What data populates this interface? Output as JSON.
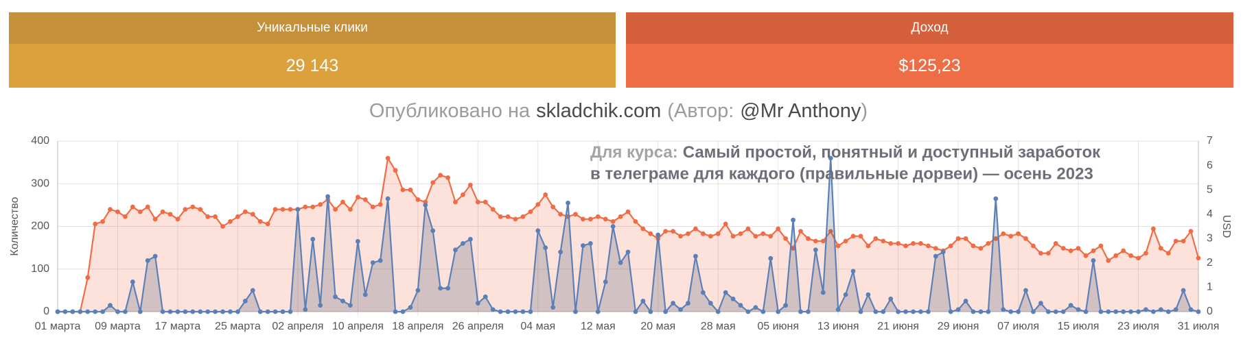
{
  "cards": [
    {
      "title": "Уникальные клики",
      "value": "29 143"
    },
    {
      "title": "Доход",
      "value": "$125,23"
    }
  ],
  "subtitle_parts": [
    "Опубликовано на",
    "skladchik.com",
    "(Автор:",
    "@Mr Anthony",
    ")"
  ],
  "chart_data": {
    "type": "line",
    "annotation": {
      "label": "Для курса:",
      "lines": [
        "Самый простой, понятный и доступный заработок",
        "в телеграме для каждого (правильные дорвеи) — осень 2023"
      ]
    },
    "ylabel": "Количество",
    "y2label": "USD",
    "categories": [
      "01 марта",
      null,
      null,
      null,
      null,
      null,
      null,
      null,
      "09 марта",
      null,
      null,
      null,
      null,
      null,
      null,
      null,
      "17 марта",
      null,
      null,
      null,
      null,
      null,
      null,
      null,
      "25 марта",
      null,
      null,
      null,
      null,
      null,
      null,
      null,
      "02 апреля",
      null,
      null,
      null,
      null,
      null,
      null,
      null,
      "10 апреля",
      null,
      null,
      null,
      null,
      null,
      null,
      null,
      "18 апреля",
      null,
      null,
      null,
      null,
      null,
      null,
      null,
      "26 апреля",
      null,
      null,
      null,
      null,
      null,
      null,
      null,
      "04 мая",
      null,
      null,
      null,
      null,
      null,
      null,
      null,
      "12 мая",
      null,
      null,
      null,
      null,
      null,
      null,
      null,
      "20 мая",
      null,
      null,
      null,
      null,
      null,
      null,
      null,
      "28 мая",
      null,
      null,
      null,
      null,
      null,
      null,
      null,
      "05 июня",
      null,
      null,
      null,
      null,
      null,
      null,
      null,
      "13 июня",
      null,
      null,
      null,
      null,
      null,
      null,
      null,
      "21 июня",
      null,
      null,
      null,
      null,
      null,
      null,
      null,
      "29 июня",
      null,
      null,
      null,
      null,
      null,
      null,
      null,
      "07 июля",
      null,
      null,
      null,
      null,
      null,
      null,
      null,
      "15 июля",
      null,
      null,
      null,
      null,
      null,
      null,
      null,
      "23 июля",
      null,
      null,
      null,
      null,
      null,
      null,
      null,
      "31 июля"
    ],
    "ylim": [
      0,
      400
    ],
    "yticks": [
      0,
      100,
      200,
      300,
      400
    ],
    "y2lim": [
      0,
      7
    ],
    "y2ticks": [
      0,
      1,
      2,
      3,
      4,
      5,
      6,
      7
    ],
    "grid": true,
    "series": [
      {
        "color": "#ef6c44",
        "axis": "y2",
        "values": [
          0,
          0,
          0,
          0,
          1.4,
          3.6,
          3.7,
          4.2,
          4.1,
          3.9,
          4.3,
          4.1,
          4.3,
          3.8,
          4.1,
          4.0,
          3.8,
          4.2,
          4.3,
          4.2,
          3.9,
          3.9,
          3.5,
          3.7,
          3.9,
          4.1,
          4.0,
          3.7,
          3.6,
          4.2,
          4.2,
          4.2,
          4.2,
          4.3,
          4.3,
          4.4,
          4.6,
          4.2,
          4.5,
          4.2,
          4.7,
          4.6,
          4.3,
          4.4,
          6.3,
          5.8,
          5.0,
          5.0,
          4.6,
          4.5,
          5.3,
          5.6,
          5.5,
          4.5,
          4.8,
          5.2,
          4.5,
          4.5,
          4.2,
          3.9,
          3.9,
          3.8,
          3.9,
          4.1,
          4.4,
          4.8,
          4.3,
          4.0,
          3.9,
          4.0,
          3.8,
          3.8,
          3.9,
          3.8,
          3.7,
          3.9,
          4.1,
          3.7,
          3.4,
          3.2,
          3.0,
          3.3,
          3.3,
          3.1,
          3.2,
          3.4,
          3.2,
          3.1,
          3.2,
          3.6,
          3.1,
          3.2,
          3.4,
          3.1,
          3.2,
          3.1,
          3.4,
          3.0,
          2.6,
          3.3,
          3.0,
          2.9,
          2.9,
          3.3,
          2.7,
          2.9,
          3.1,
          3.1,
          2.7,
          3.0,
          2.9,
          2.8,
          2.8,
          2.7,
          2.8,
          2.8,
          2.7,
          2.6,
          2.5,
          2.7,
          3.0,
          3.0,
          2.7,
          2.6,
          2.8,
          3.0,
          3.2,
          3.1,
          3.2,
          3.0,
          2.7,
          2.4,
          2.4,
          2.8,
          2.6,
          2.5,
          2.6,
          2.3,
          2.5,
          2.7,
          2.1,
          2.3,
          2.5,
          2.3,
          2.2,
          2.4,
          3.4,
          2.6,
          2.4,
          2.9,
          2.9,
          3.3,
          2.2
        ]
      },
      {
        "color": "#5b80b8",
        "axis": "y",
        "values": [
          0,
          0,
          0,
          0,
          0,
          0,
          0,
          15,
          0,
          0,
          70,
          0,
          120,
          130,
          0,
          0,
          0,
          0,
          0,
          0,
          0,
          0,
          0,
          0,
          0,
          25,
          50,
          0,
          0,
          0,
          0,
          0,
          240,
          5,
          170,
          15,
          270,
          35,
          25,
          15,
          165,
          40,
          115,
          120,
          265,
          0,
          0,
          10,
          50,
          250,
          190,
          55,
          55,
          145,
          160,
          170,
          20,
          35,
          5,
          0,
          0,
          0,
          0,
          0,
          190,
          150,
          10,
          140,
          255,
          0,
          155,
          160,
          0,
          70,
          200,
          115,
          140,
          0,
          25,
          0,
          180,
          0,
          20,
          5,
          20,
          130,
          45,
          20,
          0,
          45,
          30,
          15,
          0,
          10,
          0,
          125,
          0,
          15,
          215,
          0,
          0,
          145,
          45,
          360,
          5,
          40,
          95,
          0,
          40,
          0,
          0,
          30,
          0,
          0,
          0,
          0,
          0,
          130,
          140,
          0,
          5,
          25,
          0,
          0,
          0,
          265,
          5,
          0,
          0,
          50,
          0,
          20,
          0,
          0,
          0,
          15,
          5,
          0,
          120,
          0,
          0,
          0,
          0,
          0,
          0,
          5,
          0,
          5,
          0,
          5,
          50,
          5,
          0
        ]
      }
    ]
  }
}
